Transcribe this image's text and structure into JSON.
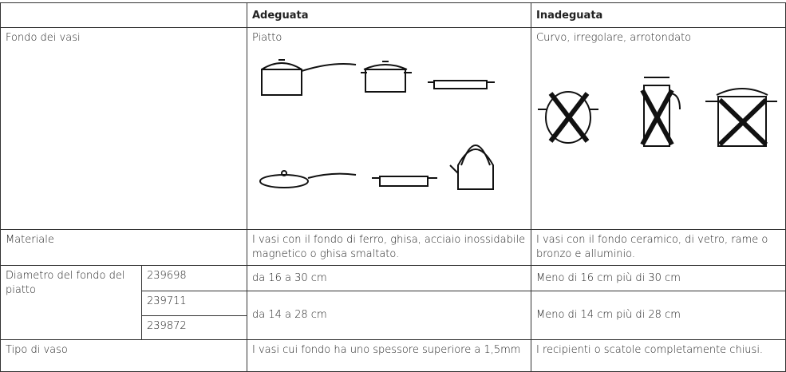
{
  "table": {
    "header": [
      "Adeguata",
      "Inadeguata"
    ],
    "rows": [
      [
        "Fondo dei vasi",
        "Piatto",
        "Curvo, irregolare, arrotondato"
      ],
      [
        "Materiale",
        "I vasi con il fondo di ferro, ghisa, acciaio inossidabile magnetico o ghisa smaltato.",
        "I vasi con il fondo ceramico, di vetro, rame o bronzo e alluminio."
      ]
    ],
    "diameter": {
      "label": "Diametro del fondo del piatto",
      "models": [
        "239698",
        "239711",
        "239872"
      ],
      "rows": [
        [
          "da 16 a 30 cm",
          "Meno di 16 cm più di 30 cm"
        ],
        [
          "da 14 a 28 cm",
          "Meno di 14 cm più di 28 cm"
        ]
      ]
    },
    "last": [
      "Tipo di vaso",
      "I vasi cui fondo ha uno spessore superiore a 1,5mm",
      "I recipienti o scatole completamente chiusi."
    ]
  }
}
